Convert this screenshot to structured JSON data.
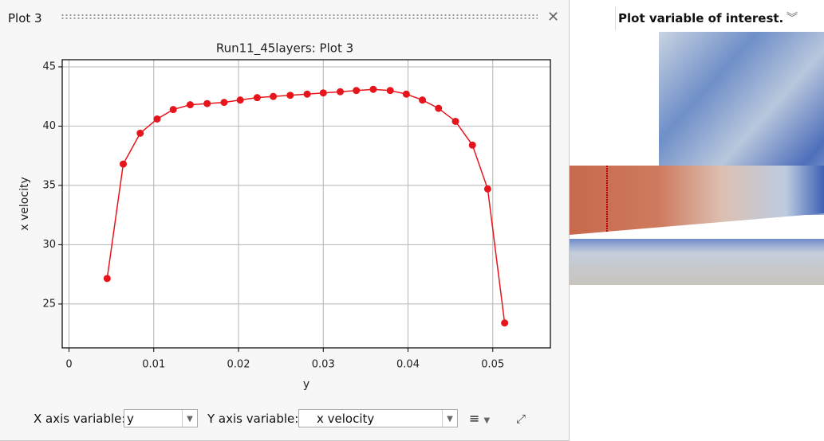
{
  "panel": {
    "title": "Plot 3"
  },
  "chart_data": {
    "type": "line",
    "title": "Run11_45layers: Plot 3",
    "x_label": "y",
    "y_label": "x velocity",
    "x": [
      0.0045,
      0.0064,
      0.0084,
      0.0104,
      0.0123,
      0.0143,
      0.0163,
      0.0183,
      0.0202,
      0.0222,
      0.0241,
      0.0261,
      0.0281,
      0.03,
      0.032,
      0.0339,
      0.0359,
      0.0379,
      0.0398,
      0.0417,
      0.0436,
      0.0456,
      0.0476,
      0.0494,
      0.0514
    ],
    "values": [
      27.15,
      36.8,
      39.4,
      40.6,
      41.4,
      41.8,
      41.9,
      42.0,
      42.2,
      42.4,
      42.5,
      42.6,
      42.7,
      42.8,
      42.9,
      43.0,
      43.1,
      43.0,
      42.7,
      42.2,
      41.5,
      40.4,
      38.4,
      34.7,
      23.4
    ],
    "color": "#e8141c",
    "xlim": [
      -0.0008,
      0.0568
    ],
    "ylim": [
      21.3,
      45.6
    ],
    "xticks": [
      0,
      0.01,
      0.02,
      0.03,
      0.04,
      0.05
    ],
    "yticks": [
      25,
      30,
      35,
      40,
      45
    ],
    "grid": true
  },
  "controls": {
    "x_axis_label": "X axis variable:",
    "x_axis_value": "y",
    "y_axis_label": "Y axis variable:",
    "y_axis_value": "x velocity"
  },
  "tooltip": {
    "text": "Plot variable of interest."
  }
}
